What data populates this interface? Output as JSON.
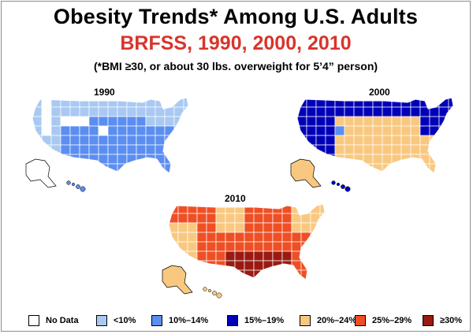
{
  "title": "Obesity Trends* Among U.S. Adults",
  "subtitle": "BRFSS, 1990, 2000, 2010",
  "note": "(*BMI ≥30, or about 30 lbs. overweight for 5’4” person)",
  "colors": {
    "title": "#000000",
    "subtitle": "#d8352b",
    "no_data": "#ffffff",
    "lt10": "#a9c9f3",
    "r10_14": "#5b8ef0",
    "r15_19": "#0000b8",
    "r20_24": "#f9c880",
    "r25_29": "#ef4f24",
    "ge30": "#9a1a12"
  },
  "maps": [
    {
      "year": "1990"
    },
    {
      "year": "2000"
    },
    {
      "year": "2010"
    }
  ],
  "legend": [
    {
      "label": "No Data",
      "color": "#ffffff"
    },
    {
      "label": "<10%",
      "color": "#a9c9f3"
    },
    {
      "label": "10%–14%",
      "color": "#5b8ef0"
    },
    {
      "label": "15%–19%",
      "color": "#0000b8"
    },
    {
      "label": "20%–24%",
      "color": "#f9c880"
    },
    {
      "label": "25%–29%",
      "color": "#ef4f24"
    },
    {
      "label": "≥30%",
      "color": "#9a1a12"
    }
  ]
}
